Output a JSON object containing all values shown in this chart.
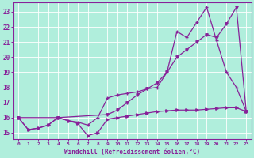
{
  "xlabel": "Windchill (Refroidissement éolien,°C)",
  "bg_color": "#b0eedc",
  "line_color": "#882299",
  "xlim": [
    -0.5,
    23.5
  ],
  "ylim": [
    14.6,
    23.6
  ],
  "yticks": [
    15,
    16,
    17,
    18,
    19,
    20,
    21,
    22,
    23
  ],
  "xticks": [
    0,
    1,
    2,
    3,
    4,
    5,
    6,
    7,
    8,
    9,
    10,
    11,
    12,
    13,
    14,
    15,
    16,
    17,
    18,
    19,
    20,
    21,
    22,
    23
  ],
  "line1_x": [
    0,
    1,
    2,
    3,
    4,
    5,
    6,
    7,
    8,
    9,
    10,
    11,
    12,
    13,
    14,
    15,
    16,
    17,
    18,
    19,
    20,
    21,
    22,
    23
  ],
  "line1_y": [
    16.0,
    15.2,
    15.3,
    15.5,
    16.0,
    15.8,
    15.6,
    14.8,
    15.0,
    15.9,
    16.0,
    16.1,
    16.2,
    16.3,
    16.4,
    16.45,
    16.5,
    16.5,
    16.5,
    16.55,
    16.6,
    16.65,
    16.65,
    16.4
  ],
  "line2_x": [
    0,
    1,
    2,
    3,
    4,
    5,
    6,
    7,
    8,
    9,
    10,
    11,
    12,
    13,
    14,
    15,
    16,
    17,
    18,
    19,
    20,
    21,
    22,
    23
  ],
  "line2_y": [
    16.0,
    15.2,
    15.3,
    15.5,
    16.0,
    15.8,
    15.7,
    15.5,
    16.0,
    17.3,
    17.5,
    17.6,
    17.7,
    17.9,
    18.0,
    19.0,
    21.7,
    21.3,
    22.3,
    23.3,
    21.1,
    19.0,
    18.0,
    16.4
  ],
  "line3_x": [
    0,
    4,
    9,
    10,
    11,
    12,
    13,
    14,
    15,
    16,
    17,
    18,
    19,
    20,
    21,
    22,
    23
  ],
  "line3_y": [
    16.0,
    16.0,
    16.2,
    16.5,
    17.0,
    17.5,
    17.9,
    18.3,
    19.0,
    20.0,
    20.5,
    21.0,
    21.5,
    21.3,
    22.2,
    23.3,
    16.4
  ]
}
